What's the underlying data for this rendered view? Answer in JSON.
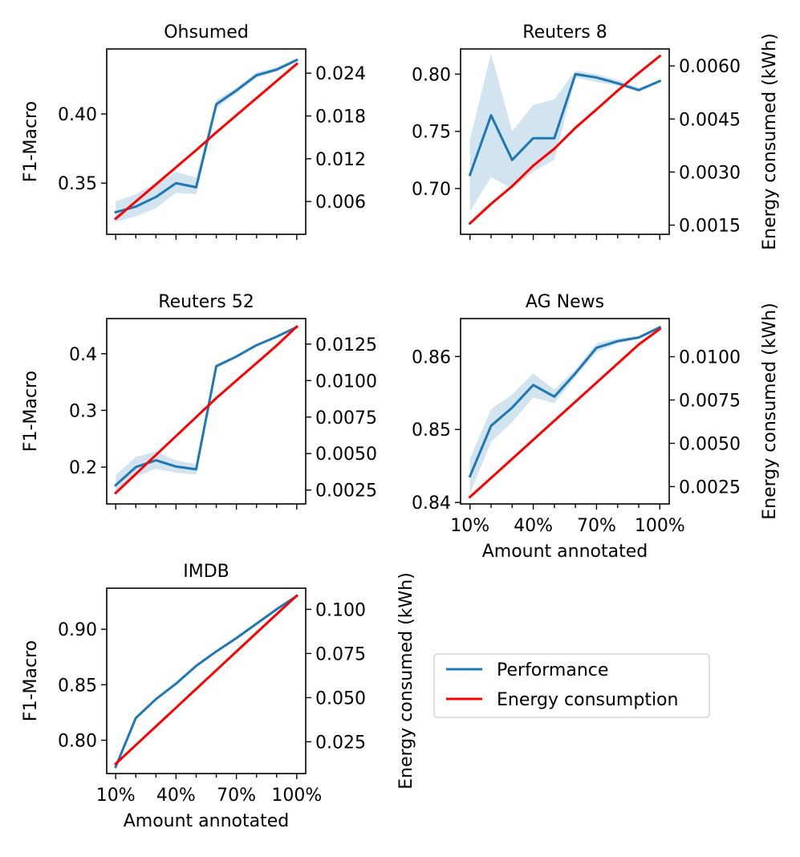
{
  "legend": {
    "entries": [
      {
        "label": "Performance",
        "color": "#1f77b4"
      },
      {
        "label": "Energy consumption",
        "color": "#ff0000"
      }
    ]
  },
  "chart_data": [
    {
      "type": "line",
      "title": "Ohsumed",
      "xlabel": "",
      "ylabel": "F1-Macro",
      "y2label": "",
      "show_xticklabels": false,
      "x": [
        10,
        20,
        30,
        40,
        50,
        60,
        70,
        80,
        90,
        100
      ],
      "xticks": [
        10,
        40,
        70,
        100
      ],
      "xticklabels": [
        "10%",
        "40%",
        "70%",
        "100%"
      ],
      "ylim": [
        0.313,
        0.447
      ],
      "yticks": [
        0.35,
        0.4
      ],
      "yticklabels": [
        "0.35",
        "0.40"
      ],
      "y2lim": [
        0.0014,
        0.0274
      ],
      "y2ticks": [
        0.006,
        0.012,
        0.018,
        0.024
      ],
      "y2ticklabels": [
        "0.006",
        "0.012",
        "0.018",
        "0.024"
      ],
      "series": [
        {
          "name": "Performance",
          "color": "#1f77b4",
          "values": [
            0.329,
            0.333,
            0.34,
            0.35,
            0.347,
            0.407,
            0.417,
            0.428,
            0.432,
            0.439
          ],
          "band_low": [
            0.322,
            0.326,
            0.332,
            0.343,
            0.342,
            0.404,
            0.415,
            0.426,
            0.431,
            0.439
          ],
          "band_high": [
            0.337,
            0.342,
            0.35,
            0.358,
            0.354,
            0.41,
            0.419,
            0.43,
            0.434,
            0.44
          ]
        },
        {
          "name": "Energy consumption",
          "axis": "right",
          "color": "#ff0000",
          "values": [
            0.0036,
            0.006,
            0.0084,
            0.0108,
            0.0132,
            0.0157,
            0.0181,
            0.0205,
            0.0229,
            0.0253
          ]
        }
      ]
    },
    {
      "type": "line",
      "title": "Reuters 8",
      "xlabel": "",
      "ylabel": "",
      "y2label": "Energy consumed (kWh)",
      "show_xticklabels": false,
      "x": [
        10,
        20,
        30,
        40,
        50,
        60,
        70,
        80,
        90,
        100
      ],
      "xticks": [
        10,
        40,
        70,
        100
      ],
      "xticklabels": [
        "10%",
        "40%",
        "70%",
        "100%"
      ],
      "ylim": [
        0.66,
        0.822
      ],
      "yticks": [
        0.7,
        0.75,
        0.8
      ],
      "yticklabels": [
        "0.70",
        "0.75",
        "0.80"
      ],
      "y2lim": [
        0.00124,
        0.00648
      ],
      "y2ticks": [
        0.0015,
        0.003,
        0.0045,
        0.006
      ],
      "y2ticklabels": [
        "0.0015",
        "0.0030",
        "0.0045",
        "0.0060"
      ],
      "series": [
        {
          "name": "Performance",
          "color": "#1f77b4",
          "values": [
            0.712,
            0.764,
            0.725,
            0.744,
            0.744,
            0.8,
            0.797,
            0.792,
            0.786,
            0.794
          ],
          "band_low": [
            0.68,
            0.71,
            0.7,
            0.715,
            0.725,
            0.797,
            0.793,
            0.79,
            0.785,
            0.793
          ],
          "band_high": [
            0.743,
            0.818,
            0.75,
            0.773,
            0.778,
            0.803,
            0.8,
            0.795,
            0.788,
            0.795
          ]
        },
        {
          "name": "Energy consumption",
          "axis": "right",
          "color": "#ff0000",
          "values": [
            0.00155,
            0.0021,
            0.0026,
            0.00318,
            0.00366,
            0.00425,
            0.00477,
            0.0053,
            0.0058,
            0.00628
          ]
        }
      ]
    },
    {
      "type": "line",
      "title": "Reuters 52",
      "xlabel": "",
      "ylabel": "F1-Macro",
      "y2label": "",
      "show_xticklabels": false,
      "x": [
        10,
        20,
        30,
        40,
        50,
        60,
        70,
        80,
        90,
        100
      ],
      "xticks": [
        10,
        40,
        70,
        100
      ],
      "xticklabels": [
        "10%",
        "40%",
        "70%",
        "100%"
      ],
      "ylim": [
        0.135,
        0.462
      ],
      "yticks": [
        0.2,
        0.3,
        0.4
      ],
      "yticklabels": [
        "0.2",
        "0.3",
        "0.4"
      ],
      "y2lim": [
        0.00155,
        0.01425
      ],
      "y2ticks": [
        0.0025,
        0.005,
        0.0075,
        0.01,
        0.0125
      ],
      "y2ticklabels": [
        "0.0025",
        "0.0050",
        "0.0075",
        "0.0100",
        "0.0125"
      ],
      "series": [
        {
          "name": "Performance",
          "color": "#1f77b4",
          "values": [
            0.168,
            0.2,
            0.212,
            0.201,
            0.196,
            0.378,
            0.395,
            0.415,
            0.43,
            0.447
          ],
          "band_low": [
            0.152,
            0.183,
            0.197,
            0.19,
            0.187,
            0.375,
            0.393,
            0.414,
            0.429,
            0.447
          ],
          "band_high": [
            0.186,
            0.218,
            0.227,
            0.212,
            0.205,
            0.381,
            0.397,
            0.417,
            0.431,
            0.448
          ]
        },
        {
          "name": "Energy consumption",
          "axis": "right",
          "color": "#ff0000",
          "values": [
            0.0023,
            0.0036,
            0.0049,
            0.0062,
            0.0075,
            0.0088,
            0.01,
            0.0112,
            0.0124,
            0.0137
          ]
        }
      ]
    },
    {
      "type": "line",
      "title": "AG News",
      "xlabel": "Amount annotated",
      "ylabel": "",
      "y2label": "Energy consumed (kWh)",
      "show_xticklabels": true,
      "x": [
        10,
        20,
        30,
        40,
        50,
        60,
        70,
        80,
        90,
        100
      ],
      "xticks": [
        10,
        40,
        70,
        100
      ],
      "xticklabels": [
        "10%",
        "40%",
        "70%",
        "100%"
      ],
      "ylim": [
        0.8398,
        0.8652
      ],
      "yticks": [
        0.84,
        0.85,
        0.86
      ],
      "yticklabels": [
        "0.84",
        "0.85",
        "0.86"
      ],
      "y2lim": [
        0.0015,
        0.0122
      ],
      "y2ticks": [
        0.0025,
        0.005,
        0.0075,
        0.01
      ],
      "y2ticklabels": [
        "0.0025",
        "0.0050",
        "0.0075",
        "0.0100"
      ],
      "series": [
        {
          "name": "Performance",
          "color": "#1f77b4",
          "values": [
            0.8436,
            0.8505,
            0.853,
            0.8561,
            0.8545,
            0.8577,
            0.8612,
            0.8621,
            0.8626,
            0.864
          ],
          "band_low": [
            0.8412,
            0.8483,
            0.851,
            0.8544,
            0.8536,
            0.8572,
            0.8606,
            0.8618,
            0.8625,
            0.8639
          ],
          "band_high": [
            0.846,
            0.8528,
            0.8548,
            0.8577,
            0.8555,
            0.8582,
            0.8618,
            0.8625,
            0.8628,
            0.8641
          ]
        },
        {
          "name": "Energy consumption",
          "axis": "right",
          "color": "#ff0000",
          "values": [
            0.0019,
            0.003,
            0.0041,
            0.0052,
            0.0063,
            0.0074,
            0.0085,
            0.0096,
            0.0107,
            0.0116
          ]
        }
      ]
    },
    {
      "type": "line",
      "title": "IMDB",
      "xlabel": "Amount annotated",
      "ylabel": "F1-Macro",
      "y2label": "Energy consumed (kWh)",
      "show_xticklabels": true,
      "x": [
        10,
        20,
        30,
        40,
        50,
        60,
        70,
        80,
        90,
        100
      ],
      "xticks": [
        10,
        40,
        70,
        100
      ],
      "xticklabels": [
        "10%",
        "40%",
        "70%",
        "100%"
      ],
      "ylim": [
        0.77,
        0.937
      ],
      "yticks": [
        0.8,
        0.85,
        0.9
      ],
      "yticklabels": [
        "0.80",
        "0.85",
        "0.90"
      ],
      "y2lim": [
        0.007,
        0.112
      ],
      "y2ticks": [
        0.025,
        0.05,
        0.075,
        0.1
      ],
      "y2ticklabels": [
        "0.025",
        "0.050",
        "0.075",
        "0.100"
      ],
      "series": [
        {
          "name": "Performance",
          "color": "#1f77b4",
          "values": [
            0.776,
            0.82,
            0.837,
            0.851,
            0.867,
            0.88,
            0.892,
            0.905,
            0.918,
            0.93
          ],
          "band_low": [
            0.775,
            0.819,
            0.836,
            0.85,
            0.866,
            0.879,
            0.891,
            0.904,
            0.917,
            0.929
          ],
          "band_high": [
            0.777,
            0.821,
            0.838,
            0.852,
            0.868,
            0.881,
            0.893,
            0.906,
            0.919,
            0.931
          ]
        },
        {
          "name": "Energy consumption",
          "axis": "right",
          "color": "#ff0000",
          "values": [
            0.0125,
            0.0231,
            0.0337,
            0.0443,
            0.0549,
            0.0655,
            0.0761,
            0.0867,
            0.0973,
            0.1077
          ]
        }
      ]
    }
  ]
}
